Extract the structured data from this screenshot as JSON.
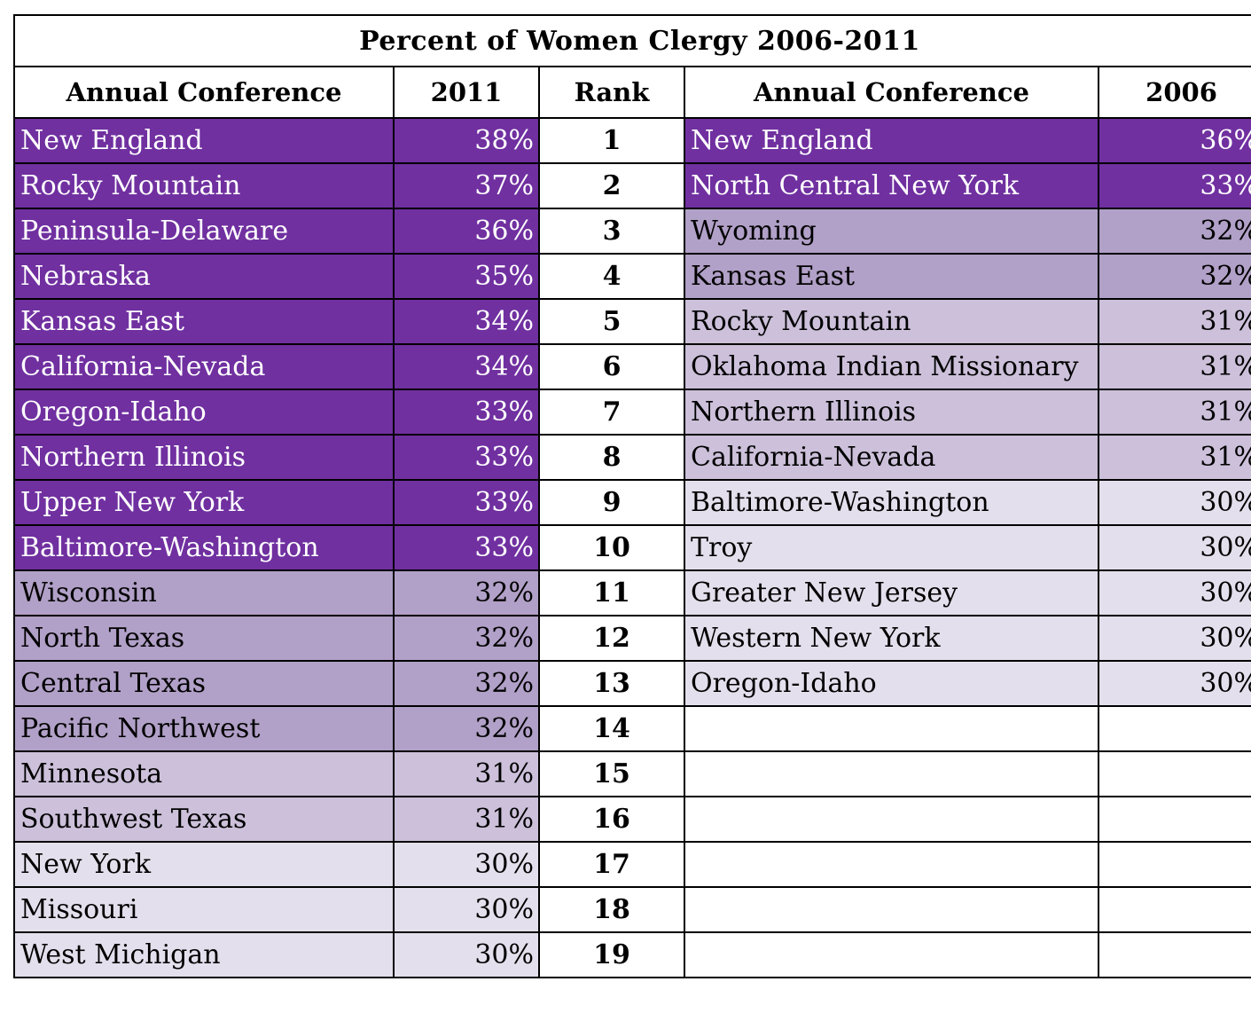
{
  "title": "Percent of Women Clergy 2006-2011",
  "headers": {
    "annual_conference_2011": "Annual Conference",
    "year_2011": "2011",
    "rank": "Rank",
    "annual_conference_2006": "Annual Conference",
    "year_2006": "2006"
  },
  "rows": [
    {
      "rank": "1",
      "conf2011": "New England",
      "pct2011": "38%",
      "tier2011": 1,
      "conf2006": "New England",
      "pct2006": "36%",
      "tier2006": 1
    },
    {
      "rank": "2",
      "conf2011": "Rocky Mountain",
      "pct2011": "37%",
      "tier2011": 1,
      "conf2006": "North Central New York",
      "pct2006": "33%",
      "tier2006": 1
    },
    {
      "rank": "3",
      "conf2011": "Peninsula-Delaware",
      "pct2011": "36%",
      "tier2011": 1,
      "conf2006": "Wyoming",
      "pct2006": "32%",
      "tier2006": 2
    },
    {
      "rank": "4",
      "conf2011": "Nebraska",
      "pct2011": "35%",
      "tier2011": 1,
      "conf2006": "Kansas East",
      "pct2006": "32%",
      "tier2006": 2
    },
    {
      "rank": "5",
      "conf2011": "Kansas East",
      "pct2011": "34%",
      "tier2011": 1,
      "conf2006": "Rocky Mountain",
      "pct2006": "31%",
      "tier2006": 3
    },
    {
      "rank": "6",
      "conf2011": "California-Nevada",
      "pct2011": "34%",
      "tier2011": 1,
      "conf2006": "Oklahoma Indian Missionary",
      "pct2006": "31%",
      "tier2006": 3
    },
    {
      "rank": "7",
      "conf2011": "Oregon-Idaho",
      "pct2011": "33%",
      "tier2011": 1,
      "conf2006": "Northern Illinois",
      "pct2006": "31%",
      "tier2006": 3
    },
    {
      "rank": "8",
      "conf2011": "Northern Illinois",
      "pct2011": "33%",
      "tier2011": 1,
      "conf2006": "California-Nevada",
      "pct2006": "31%",
      "tier2006": 3
    },
    {
      "rank": "9",
      "conf2011": "Upper New York",
      "pct2011": "33%",
      "tier2011": 1,
      "conf2006": "Baltimore-Washington",
      "pct2006": "30%",
      "tier2006": 4
    },
    {
      "rank": "10",
      "conf2011": "Baltimore-Washington",
      "pct2011": "33%",
      "tier2011": 1,
      "conf2006": "Troy",
      "pct2006": "30%",
      "tier2006": 4
    },
    {
      "rank": "11",
      "conf2011": "Wisconsin",
      "pct2011": "32%",
      "tier2011": 2,
      "conf2006": "Greater New Jersey",
      "pct2006": "30%",
      "tier2006": 4
    },
    {
      "rank": "12",
      "conf2011": "North Texas",
      "pct2011": "32%",
      "tier2011": 2,
      "conf2006": "Western New York",
      "pct2006": "30%",
      "tier2006": 4
    },
    {
      "rank": "13",
      "conf2011": "Central Texas",
      "pct2011": "32%",
      "tier2011": 2,
      "conf2006": "Oregon-Idaho",
      "pct2006": "30%",
      "tier2006": 4
    },
    {
      "rank": "14",
      "conf2011": "Pacific Northwest",
      "pct2011": "32%",
      "tier2011": 2,
      "conf2006": "",
      "pct2006": "",
      "tier2006": 0
    },
    {
      "rank": "15",
      "conf2011": "Minnesota",
      "pct2011": "31%",
      "tier2011": 3,
      "conf2006": "",
      "pct2006": "",
      "tier2006": 0
    },
    {
      "rank": "16",
      "conf2011": "Southwest Texas",
      "pct2011": "31%",
      "tier2011": 3,
      "conf2006": "",
      "pct2006": "",
      "tier2006": 0
    },
    {
      "rank": "17",
      "conf2011": "New York",
      "pct2011": "30%",
      "tier2011": 4,
      "conf2006": "",
      "pct2006": "",
      "tier2006": 0
    },
    {
      "rank": "18",
      "conf2011": "Missouri",
      "pct2011": "30%",
      "tier2011": 4,
      "conf2006": "",
      "pct2006": "",
      "tier2006": 0
    },
    {
      "rank": "19",
      "conf2011": "West Michigan",
      "pct2011": "30%",
      "tier2011": 4,
      "conf2006": "",
      "pct2006": "",
      "tier2006": 0
    }
  ],
  "colors": {
    "tier1": "#7030a0",
    "tier2": "#b1a0c7",
    "tier3": "#ccc0da",
    "tier4": "#e4dfec",
    "empty": "#ffffff"
  }
}
